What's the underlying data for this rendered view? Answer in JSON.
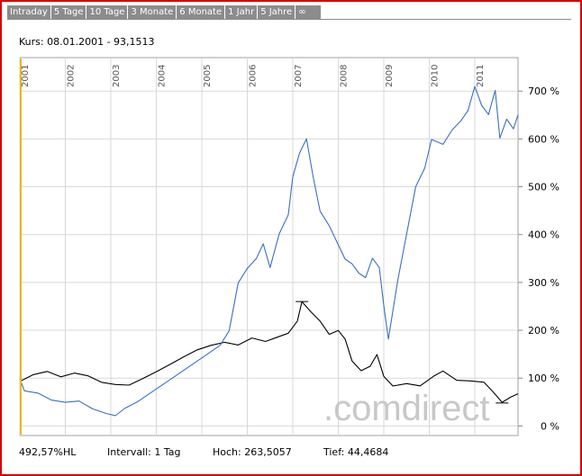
{
  "tabs": [
    "Intraday",
    "5 Tage",
    "10 Tage",
    "3 Monate",
    "6 Monate",
    "1 Jahr",
    "5 Jahre",
    "∞"
  ],
  "kurs_label": "Kurs: 08.01.2001 - 93,1513",
  "watermark": ".comdirect",
  "footer": {
    "performance": "492,57%HL",
    "interval": "Intervall: 1 Tag",
    "high": "Hoch: 263,5057",
    "low": "Tief: 44,4684"
  },
  "colors": {
    "frame": "#d40000",
    "tab_bg": "#8c8c8c",
    "grid": "#d8d8d8",
    "series_main": "#000000",
    "series_compare": "#3a6fc0",
    "cursor": "#f0b400"
  },
  "chart_data": {
    "type": "line",
    "x_tick_labels": [
      "2001",
      "2002",
      "2003",
      "2004",
      "2005",
      "2006",
      "2007",
      "2008",
      "2009",
      "2010",
      "2011"
    ],
    "x_range": [
      2001.0,
      2011.95
    ],
    "y_tick_labels": [
      "0 %",
      "100 %",
      "200 %",
      "300 %",
      "400 %",
      "500 %",
      "600 %",
      "700 %"
    ],
    "ylim": [
      -20,
      770
    ],
    "grid": true,
    "series": [
      {
        "color": "black",
        "x": [
          2001.0,
          2001.3,
          2001.6,
          2001.9,
          2002.2,
          2002.5,
          2002.8,
          2003.1,
          2003.4,
          2003.7,
          2004.0,
          2004.3,
          2004.6,
          2004.9,
          2005.2,
          2005.5,
          2005.8,
          2006.1,
          2006.4,
          2006.6,
          2006.9,
          2007.1,
          2007.2,
          2007.4,
          2007.6,
          2007.8,
          2008.0,
          2008.15,
          2008.3,
          2008.5,
          2008.7,
          2008.85,
          2009.0,
          2009.2,
          2009.5,
          2009.8,
          2010.1,
          2010.3,
          2010.6,
          2010.9,
          2011.2,
          2011.4,
          2011.6,
          2011.8,
          2011.95
        ],
        "values": [
          93,
          108,
          115,
          104,
          112,
          106,
          92,
          87,
          85,
          98,
          112,
          127,
          143,
          158,
          168,
          175,
          170,
          185,
          178,
          185,
          195,
          220,
          260,
          238,
          218,
          190,
          198,
          180,
          135,
          115,
          125,
          150,
          105,
          85,
          90,
          85,
          105,
          115,
          95,
          93,
          90,
          70,
          48,
          60,
          67
        ]
      },
      {
        "color": "blue",
        "x": [
          2001.0,
          2001.1,
          2001.4,
          2001.7,
          2002.0,
          2002.3,
          2002.6,
          2002.9,
          2003.1,
          2003.3,
          2003.6,
          2003.9,
          2004.2,
          2004.5,
          2004.8,
          2005.1,
          2005.4,
          2005.6,
          2005.8,
          2006.0,
          2006.2,
          2006.35,
          2006.5,
          2006.7,
          2006.9,
          2007.0,
          2007.15,
          2007.3,
          2007.45,
          2007.6,
          2007.8,
          2008.0,
          2008.15,
          2008.3,
          2008.45,
          2008.6,
          2008.75,
          2008.9,
          2009.0,
          2009.1,
          2009.3,
          2009.5,
          2009.7,
          2009.9,
          2010.05,
          2010.3,
          2010.5,
          2010.7,
          2010.85,
          2011.0,
          2011.15,
          2011.3,
          2011.45,
          2011.55,
          2011.7,
          2011.85,
          2011.95
        ],
        "values": [
          100,
          75,
          70,
          55,
          50,
          52,
          35,
          25,
          20,
          35,
          50,
          70,
          90,
          110,
          130,
          150,
          170,
          200,
          300,
          330,
          350,
          380,
          330,
          400,
          440,
          520,
          570,
          600,
          520,
          450,
          420,
          380,
          350,
          340,
          320,
          310,
          350,
          330,
          250,
          180,
          300,
          400,
          500,
          540,
          600,
          590,
          620,
          640,
          660,
          710,
          670,
          650,
          700,
          600,
          640,
          620,
          650
        ]
      }
    ]
  }
}
